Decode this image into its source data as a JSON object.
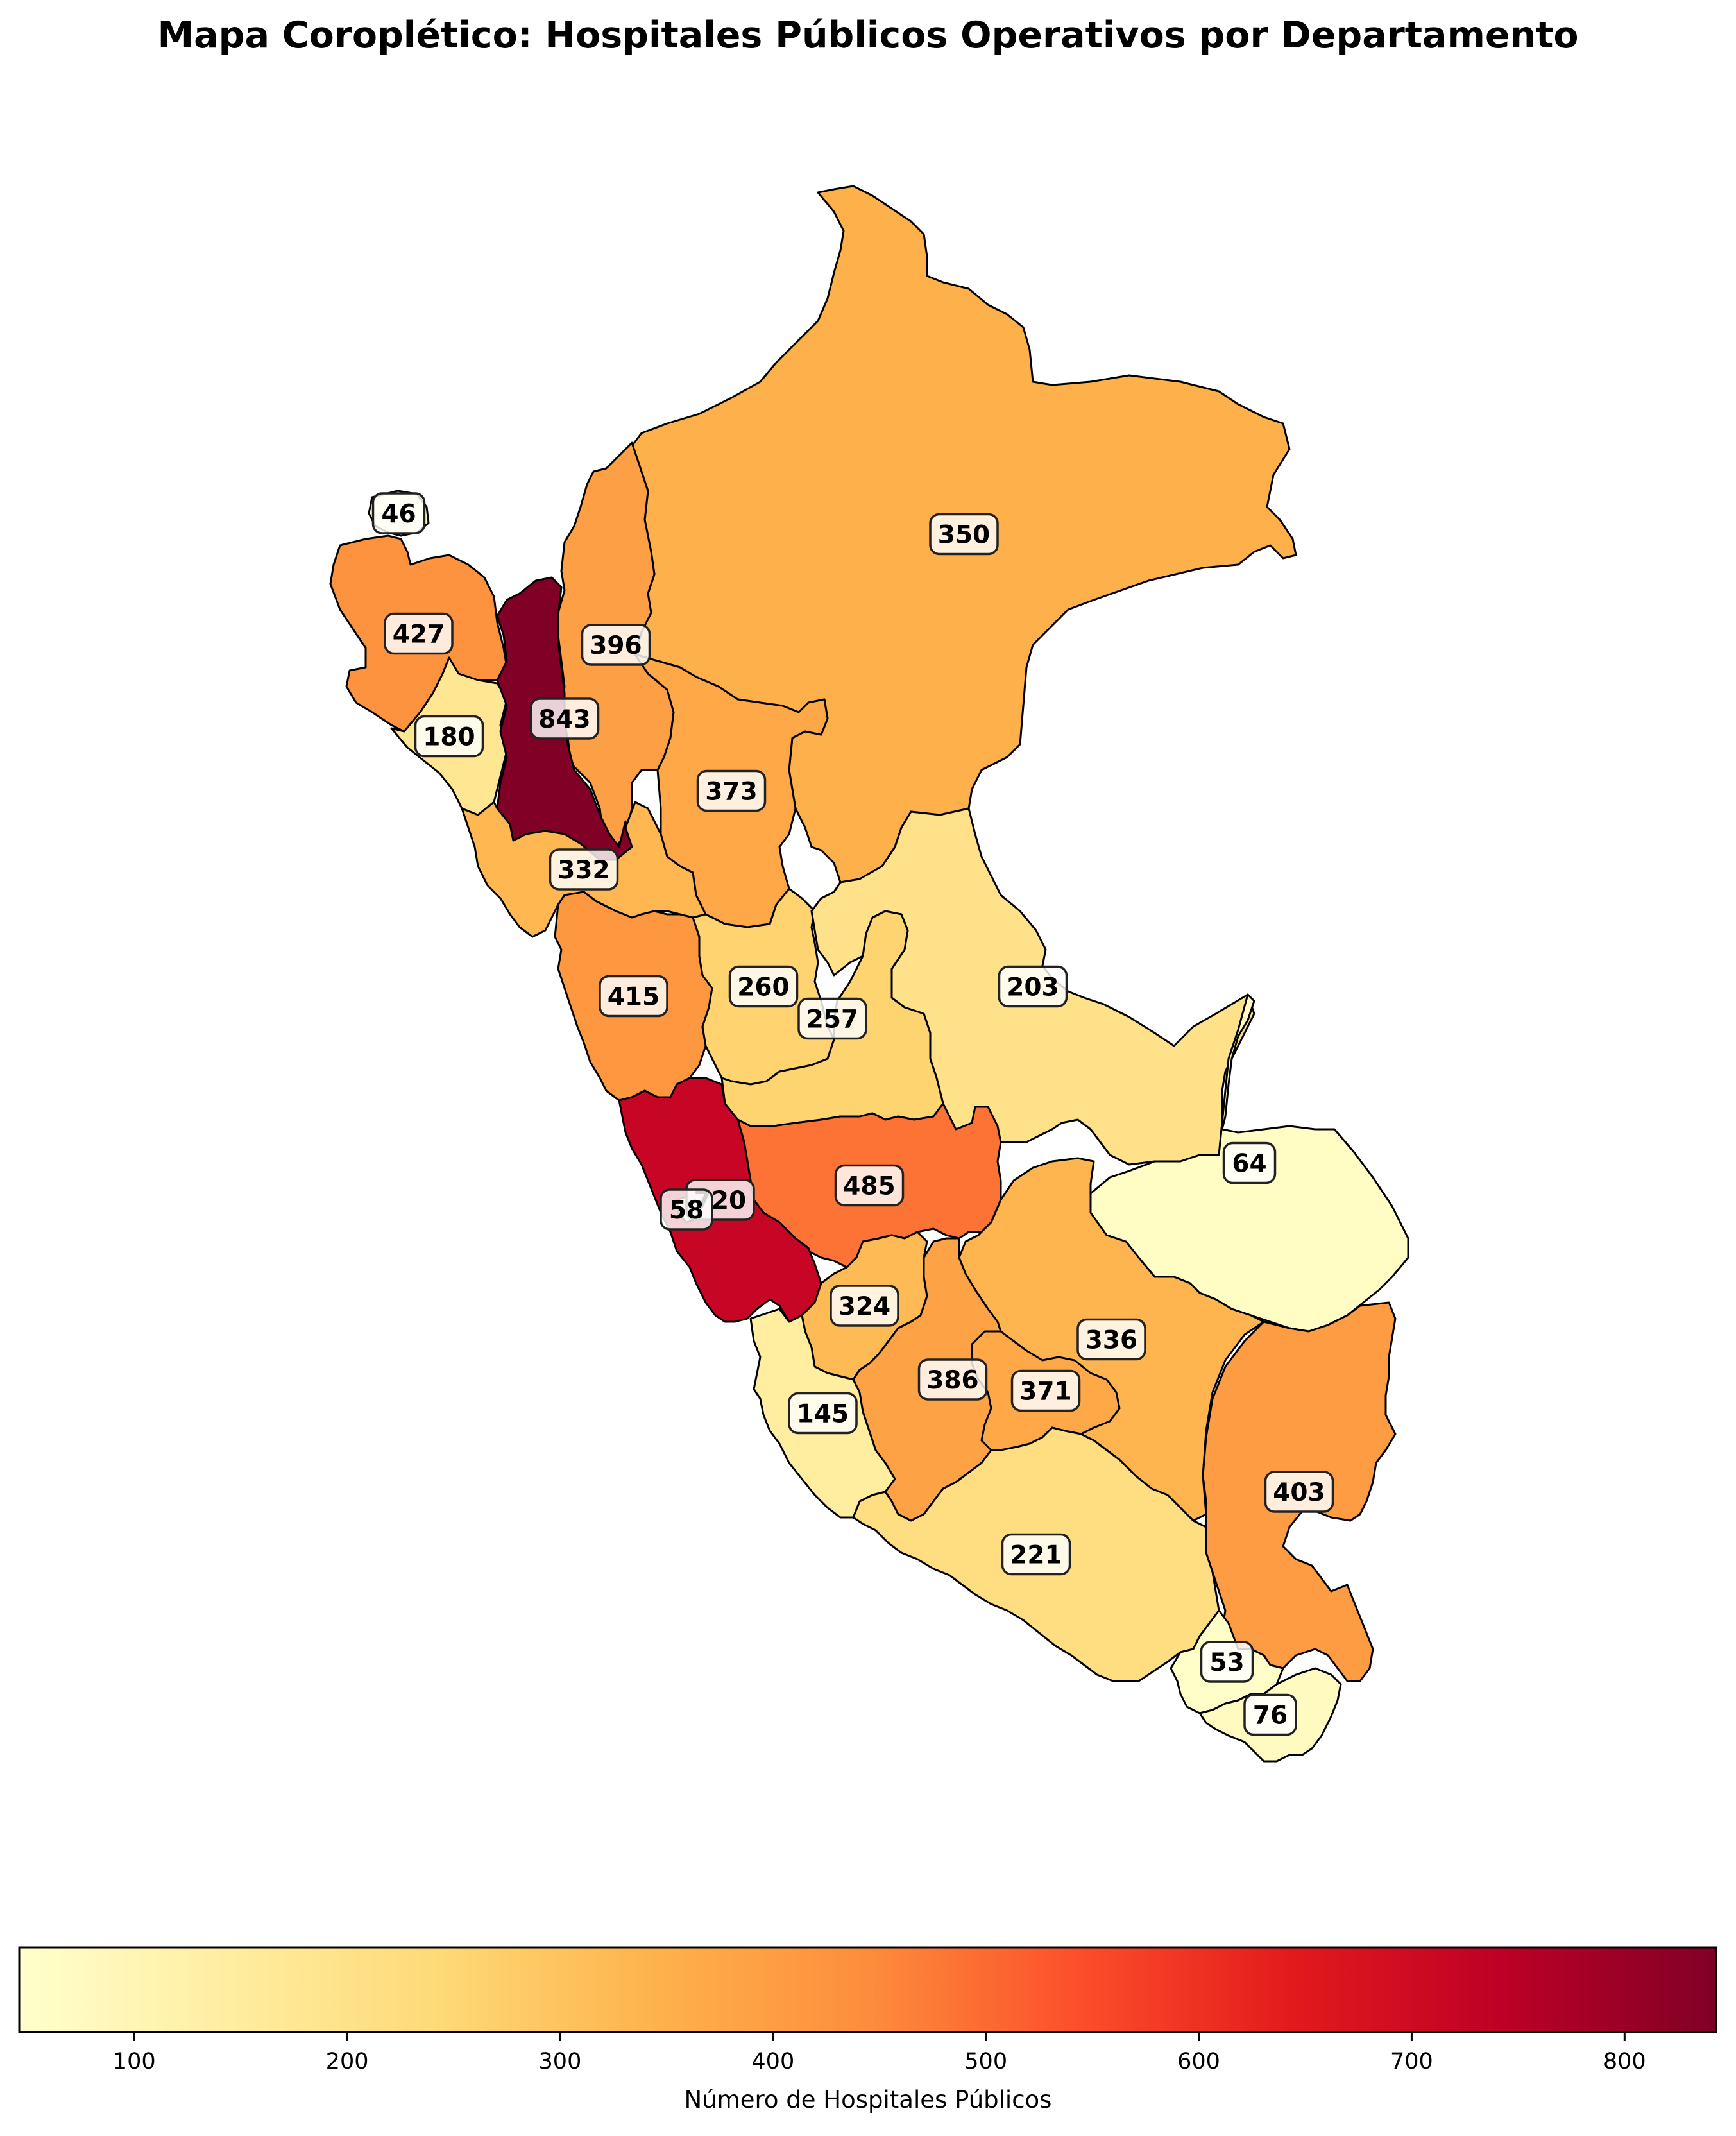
{
  "title": "Mapa Coroplético: Hospitales Públicos Operativos por Departamento",
  "colorbar": {
    "label": "Número de Hospitales Públicos",
    "min": 46,
    "max": 843,
    "ticks": [
      "100",
      "200",
      "300",
      "400",
      "500",
      "600",
      "700",
      "800"
    ],
    "colormap": "YlOrRd",
    "stops": [
      "#ffffcc",
      "#ffeda0",
      "#fed976",
      "#feb24c",
      "#fd8d3c",
      "#fc4e2a",
      "#e31a1c",
      "#bd0026",
      "#800026"
    ]
  },
  "chart_data": {
    "type": "choropleth",
    "title": "Mapa Coroplético: Hospitales Públicos Operativos por Departamento",
    "value_label": "Número de Hospitales Públicos",
    "range": [
      46,
      843
    ],
    "regions": [
      {
        "id": "tumbes",
        "value": 46
      },
      {
        "id": "piura",
        "value": 427
      },
      {
        "id": "amazonas",
        "value": 396
      },
      {
        "id": "loreto",
        "value": 350
      },
      {
        "id": "lambayeque",
        "value": 180
      },
      {
        "id": "cajamarca",
        "value": 843
      },
      {
        "id": "san-martin",
        "value": 373
      },
      {
        "id": "la-libertad",
        "value": 332
      },
      {
        "id": "ancash",
        "value": 415
      },
      {
        "id": "huanuco",
        "value": 260
      },
      {
        "id": "ucayali",
        "value": 203
      },
      {
        "id": "pasco",
        "value": 257
      },
      {
        "id": "junin",
        "value": 485
      },
      {
        "id": "lima",
        "value": 720
      },
      {
        "id": "callao",
        "value": 58
      },
      {
        "id": "madre-de-dios",
        "value": 64
      },
      {
        "id": "huancavelica",
        "value": 324
      },
      {
        "id": "cusco",
        "value": 336
      },
      {
        "id": "ica",
        "value": 145
      },
      {
        "id": "ayacucho",
        "value": 386
      },
      {
        "id": "apurimac",
        "value": 371
      },
      {
        "id": "puno",
        "value": 403
      },
      {
        "id": "arequipa",
        "value": 221
      },
      {
        "id": "moquegua",
        "value": 53
      },
      {
        "id": "tacna",
        "value": 76
      }
    ]
  }
}
